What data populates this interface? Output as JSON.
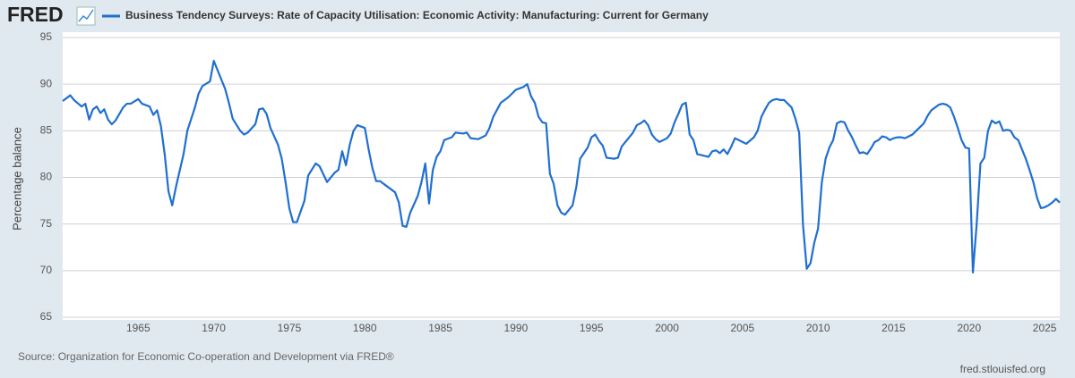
{
  "brand": "FRED",
  "chart_data": {
    "type": "line",
    "y_label": "Percentage balance",
    "source": "Source: Organization for Economic Co-operation and Development via FRED®",
    "credit": "fred.stlouisfed.org",
    "xlim": [
      1960,
      2026
    ],
    "ylim": [
      65,
      95
    ],
    "xticks": [
      1965,
      1970,
      1975,
      1980,
      1985,
      1990,
      1995,
      2000,
      2005,
      2010,
      2015,
      2020,
      2025
    ],
    "yticks": [
      65,
      70,
      75,
      80,
      85,
      90,
      95
    ],
    "grid": true,
    "x": [
      1960.0,
      1960.5,
      1960.75,
      1961.25,
      1961.5,
      1961.75,
      1962.0,
      1962.25,
      1962.5,
      1962.75,
      1963.0,
      1963.25,
      1963.5,
      1964.0,
      1964.25,
      1964.5,
      1965.0,
      1965.25,
      1965.75,
      1966.0,
      1966.25,
      1966.5,
      1966.75,
      1967.0,
      1967.25,
      1967.5,
      1968.0,
      1968.25,
      1968.75,
      1969.0,
      1969.25,
      1969.75,
      1970.0,
      1970.25,
      1970.75,
      1971.0,
      1971.25,
      1971.75,
      1972.0,
      1972.25,
      1972.75,
      1973.0,
      1973.25,
      1973.5,
      1973.75,
      1974.25,
      1974.5,
      1974.75,
      1975.0,
      1975.25,
      1975.5,
      1976.0,
      1976.25,
      1976.75,
      1977.0,
      1977.5,
      1978.0,
      1978.25,
      1978.5,
      1978.75,
      1979.0,
      1979.25,
      1979.5,
      1980.0,
      1980.25,
      1980.5,
      1980.75,
      1981.0,
      1981.5,
      1982.0,
      1982.25,
      1982.5,
      1982.75,
      1983.0,
      1983.5,
      1983.75,
      1984.0,
      1984.25,
      1984.5,
      1984.75,
      1985.0,
      1985.25,
      1985.75,
      1986.0,
      1986.5,
      1986.75,
      1987.0,
      1987.5,
      1988.0,
      1988.25,
      1988.5,
      1989.0,
      1989.5,
      1989.75,
      1990.0,
      1990.5,
      1990.75,
      1991.0,
      1991.25,
      1991.5,
      1991.75,
      1992.0,
      1992.25,
      1992.5,
      1992.75,
      1993.0,
      1993.25,
      1993.75,
      1994.0,
      1994.25,
      1994.75,
      1995.0,
      1995.25,
      1995.5,
      1995.75,
      1996.0,
      1996.5,
      1996.75,
      1997.0,
      1997.25,
      1997.75,
      1998.0,
      1998.25,
      1998.5,
      1998.75,
      1999.0,
      1999.25,
      1999.5,
      2000.0,
      2000.25,
      2000.5,
      2000.75,
      2001.0,
      2001.25,
      2001.5,
      2001.75,
      2002.0,
      2002.25,
      2002.75,
      2003.0,
      2003.25,
      2003.5,
      2003.75,
      2004.0,
      2004.25,
      2004.5,
      2004.75,
      2005.0,
      2005.25,
      2005.75,
      2006.0,
      2006.25,
      2006.5,
      2006.75,
      2007.0,
      2007.25,
      2007.5,
      2007.75,
      2008.0,
      2008.25,
      2008.5,
      2008.75,
      2009.0,
      2009.25,
      2009.5,
      2009.75,
      2010.0,
      2010.25,
      2010.5,
      2010.75,
      2011.0,
      2011.25,
      2011.5,
      2011.75,
      2012.0,
      2012.25,
      2012.5,
      2012.75,
      2013.0,
      2013.25,
      2013.5,
      2013.75,
      2014.0,
      2014.25,
      2014.5,
      2014.75,
      2015.0,
      2015.25,
      2015.5,
      2015.75,
      2016.0,
      2016.25,
      2016.5,
      2016.75,
      2017.0,
      2017.25,
      2017.5,
      2017.75,
      2018.0,
      2018.25,
      2018.5,
      2018.75,
      2019.0,
      2019.25,
      2019.5,
      2019.75,
      2020.0,
      2020.25,
      2020.5,
      2020.75,
      2021.0,
      2021.25,
      2021.5,
      2021.75,
      2022.0,
      2022.25,
      2022.5,
      2022.75,
      2023.0,
      2023.25,
      2023.5,
      2023.75,
      2024.0,
      2024.25,
      2024.5,
      2024.75,
      2025.0,
      2025.25,
      2025.5,
      2025.75,
      2026.0
    ],
    "series": [
      {
        "name": "Business Tendency Surveys: Rate of Capacity Utilisation: Economic Activity: Manufacturing: Current for Germany",
        "color": "#1f6fd1",
        "values": [
          88.2,
          88.8,
          88.3,
          87.6,
          87.9,
          86.2,
          87.3,
          87.6,
          86.9,
          87.3,
          86.2,
          85.7,
          86.1,
          87.5,
          87.9,
          87.9,
          88.4,
          87.9,
          87.6,
          86.7,
          87.2,
          85.5,
          82.5,
          78.5,
          77.0,
          79.0,
          82.5,
          85.0,
          87.5,
          89.0,
          89.8,
          90.3,
          92.5,
          91.5,
          89.5,
          88.0,
          86.3,
          85.0,
          84.6,
          84.8,
          85.7,
          87.3,
          87.4,
          86.8,
          85.3,
          83.5,
          82.0,
          79.5,
          76.7,
          75.2,
          75.2,
          77.5,
          80.2,
          81.5,
          81.2,
          79.5,
          80.5,
          80.8,
          82.8,
          81.3,
          83.5,
          85.0,
          85.6,
          85.3,
          83.0,
          81.0,
          79.6,
          79.6,
          79.0,
          78.4,
          77.3,
          74.8,
          74.7,
          76.2,
          78.0,
          79.5,
          81.5,
          77.2,
          80.8,
          82.2,
          82.8,
          84.0,
          84.3,
          84.8,
          84.7,
          84.8,
          84.2,
          84.1,
          84.5,
          85.3,
          86.5,
          88.0,
          88.6,
          89.0,
          89.4,
          89.7,
          90.0,
          88.7,
          88.0,
          86.5,
          85.9,
          85.8,
          80.4,
          79.3,
          77.0,
          76.2,
          76.0,
          77.0,
          79.0,
          82.0,
          83.2,
          84.3,
          84.6,
          83.9,
          83.4,
          82.1,
          82.0,
          82.1,
          83.3,
          83.8,
          84.8,
          85.6,
          85.8,
          86.1,
          85.6,
          84.6,
          84.1,
          83.8,
          84.2,
          84.7,
          85.9,
          86.8,
          87.8,
          88.0,
          84.6,
          84.0,
          82.5,
          82.4,
          82.2,
          82.8,
          82.9,
          82.6,
          83.0,
          82.5,
          83.3,
          84.2,
          84.0,
          83.8,
          83.6,
          84.3,
          85.0,
          86.5,
          87.3,
          88.0,
          88.3,
          88.4,
          88.3,
          88.3,
          87.9,
          87.5,
          86.3,
          84.8,
          75.0,
          70.2,
          70.8,
          73.0,
          74.5,
          79.5,
          82.0,
          83.2,
          84.0,
          85.8,
          86.0,
          85.9,
          85.0,
          84.3,
          83.4,
          82.6,
          82.7,
          82.5,
          83.1,
          83.8,
          84.0,
          84.4,
          84.3,
          84.0,
          84.2,
          84.3,
          84.3,
          84.2,
          84.4,
          84.6,
          85.0,
          85.4,
          85.8,
          86.6,
          87.2,
          87.5,
          87.8,
          87.9,
          87.8,
          87.5,
          86.5,
          85.3,
          84.0,
          83.2,
          83.1,
          69.8,
          75.0,
          81.5,
          82.1,
          85.0,
          86.1,
          85.8,
          86.0,
          85.0,
          85.1,
          85.0,
          84.3,
          84.0,
          83.0,
          82.0,
          80.8,
          79.5,
          77.8,
          76.7,
          76.8,
          77.0,
          77.3,
          77.7,
          77.3
        ]
      }
    ]
  }
}
